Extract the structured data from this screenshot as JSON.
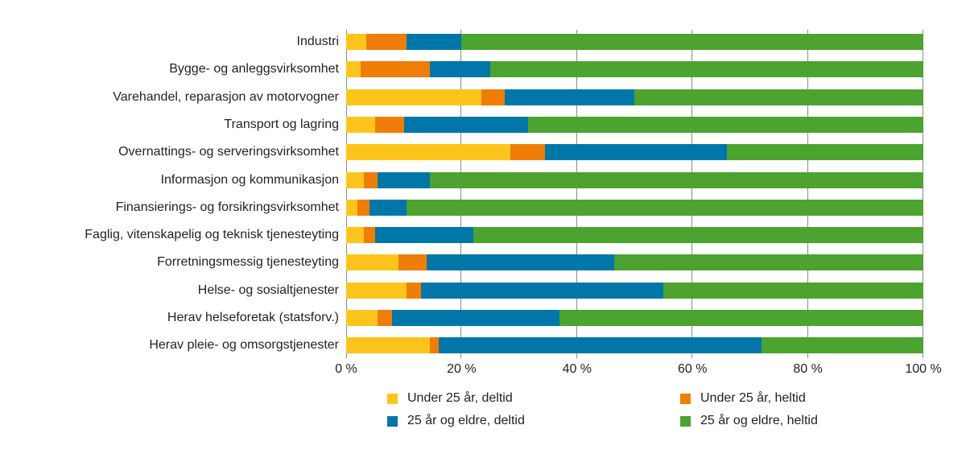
{
  "chart_data": {
    "type": "bar",
    "orientation": "horizontal",
    "stacked": true,
    "unit": "%",
    "grid": true,
    "title": "",
    "categories": [
      "Industri",
      "Bygge- og anleggsvirksomhet",
      "Varehandel, reparasjon av motorvogner",
      "Transport og lagring",
      "Overnattings- og serveringsvirksomhet",
      "Informasjon og kommunikasjon",
      "Finansierings- og forsikringsvirksomhet",
      "Faglig, vitenskapelig og teknisk tjenesteyting",
      "Forretningsmessig tjenesteyting",
      "Helse- og sosialtjenester",
      "Herav helseforetak (statsforv.)",
      "Herav pleie- og omsorgstjenester"
    ],
    "series": [
      {
        "key": "under-25-deltid",
        "name": "Under 25 år, deltid",
        "color": "#FDC51C",
        "values": [
          3.5,
          2.5,
          23.5,
          5,
          28.5,
          3,
          2,
          3,
          9,
          10.5,
          5.5,
          14.5
        ]
      },
      {
        "key": "under-25-heltid",
        "name": "Under 25 år, heltid",
        "color": "#EF7D08",
        "values": [
          7,
          12,
          4,
          5,
          6,
          2.5,
          2,
          2,
          5,
          2.5,
          2.5,
          1.5
        ]
      },
      {
        "key": "25-og-eldre-deltid",
        "name": "25 år og eldre, deltid",
        "color": "#0077A8",
        "values": [
          9.5,
          10.5,
          22.5,
          21.5,
          31.5,
          9,
          6.5,
          17,
          32.5,
          42,
          29,
          56
        ]
      },
      {
        "key": "25-og-eldre-heltid",
        "name": "25 år og eldre, heltid",
        "color": "#4CA32F",
        "values": [
          80,
          75,
          50,
          68.5,
          34,
          85.5,
          89.5,
          78,
          53.5,
          45,
          63,
          28
        ]
      }
    ],
    "x_axis": {
      "min": 0,
      "max": 100,
      "tick_labels": [
        "0 %",
        "20 %",
        "40 %",
        "60 %",
        "80 %",
        "100 %"
      ],
      "tick_values": [
        0,
        20,
        40,
        60,
        80,
        100
      ],
      "gridline_color": "#8a8a8a"
    },
    "legend": {
      "position": "bottom",
      "items": [
        {
          "key": "under-25-deltid",
          "label": "Under 25 år, deltid",
          "color": "#FDC51C"
        },
        {
          "key": "under-25-heltid",
          "label": "Under 25 år, heltid",
          "color": "#EF7D08"
        },
        {
          "key": "25-og-eldre-deltid",
          "label": "25 år og eldre, deltid",
          "color": "#0077A8"
        },
        {
          "key": "25-og-eldre-heltid",
          "label": "25 år og eldre, heltid",
          "color": "#4CA32F"
        }
      ]
    }
  }
}
